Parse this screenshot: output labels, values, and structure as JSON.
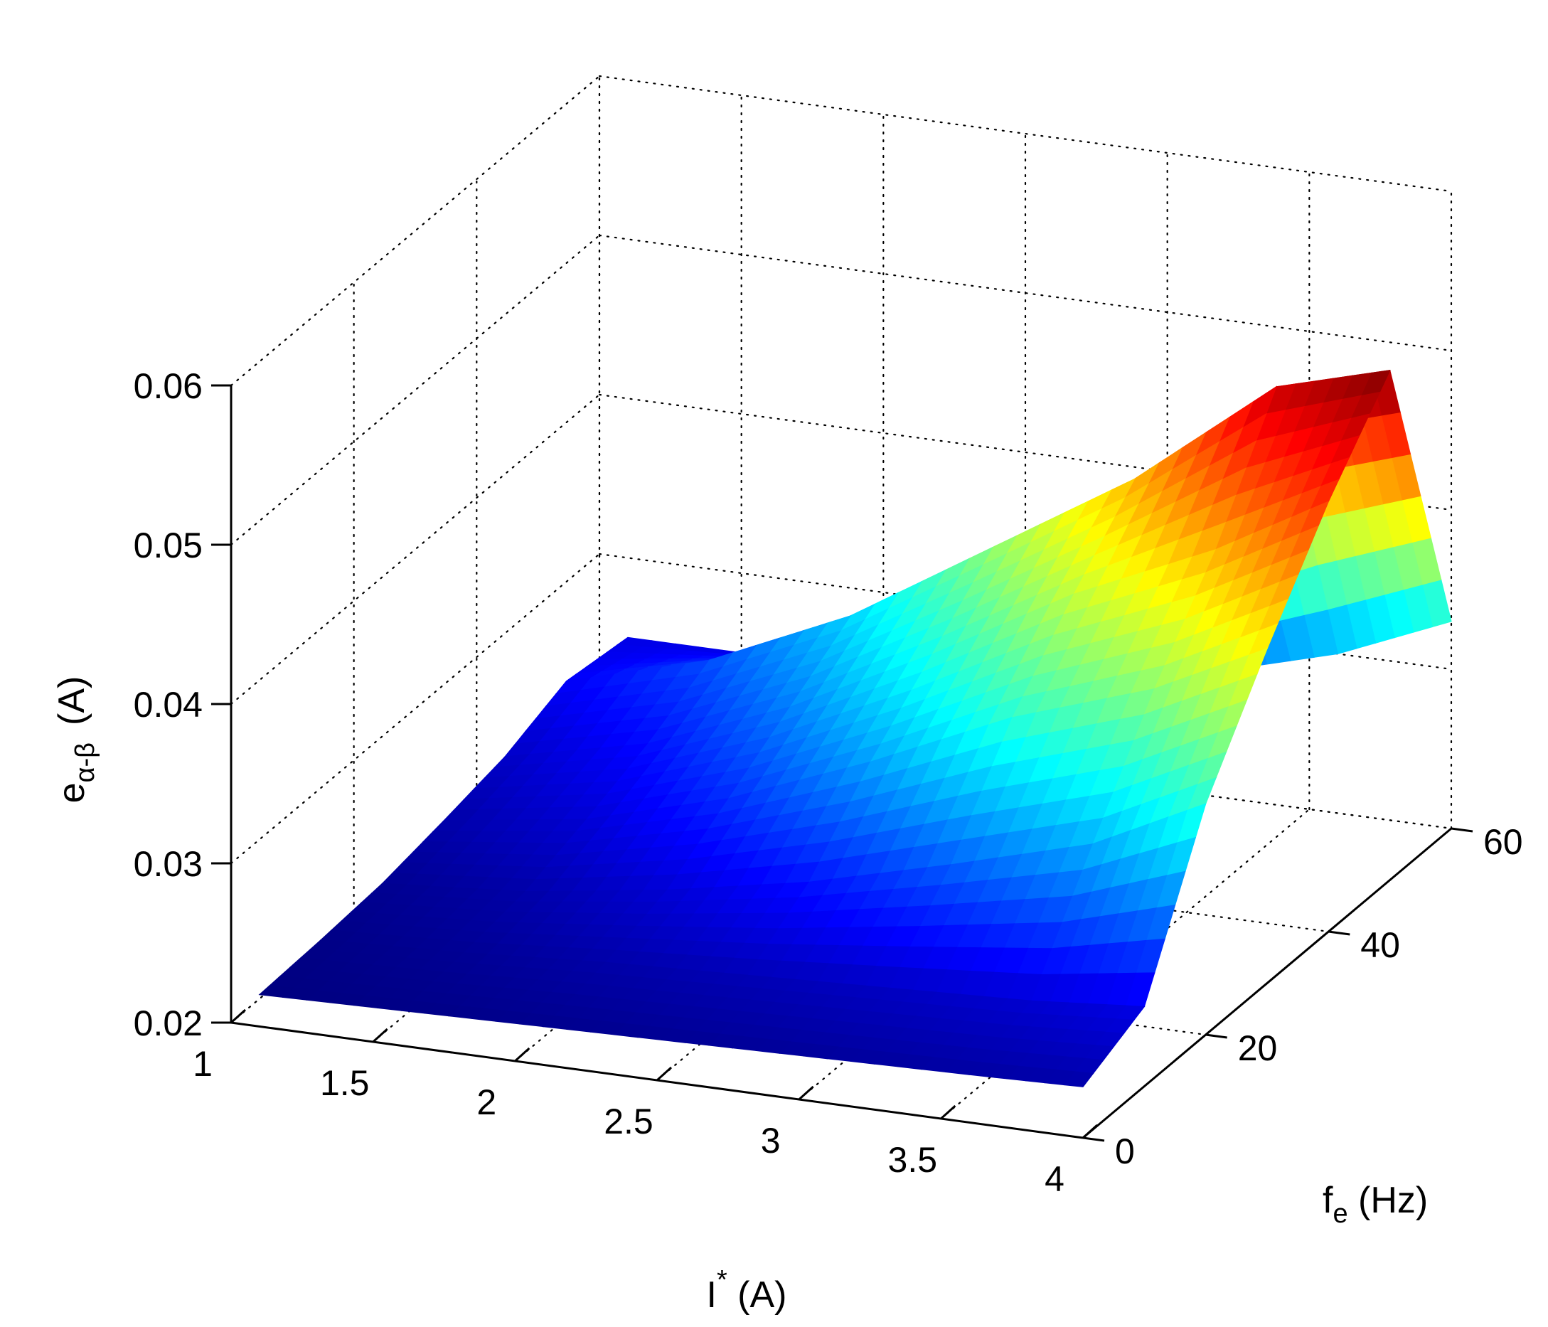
{
  "chart_data": {
    "type": "surface",
    "title": "",
    "xlabel": {
      "base": "I",
      "sup": "*",
      "rest": " (A)"
    },
    "ylabel": {
      "base": "f",
      "sub": "e",
      "rest": " (Hz)"
    },
    "zlabel": {
      "base": "e",
      "sub": "α-β",
      "rest": "(A)"
    },
    "xlim": [
      1,
      4
    ],
    "ylim": [
      0,
      60
    ],
    "zlim": [
      0.02,
      0.06
    ],
    "x_ticks": [
      "1",
      "1.5",
      "2",
      "2.5",
      "3",
      "3.5",
      "4"
    ],
    "y_ticks": [
      "0",
      "20",
      "40",
      "60"
    ],
    "z_ticks": [
      "0.02",
      "0.03",
      "0.04",
      "0.05",
      "0.06"
    ],
    "grid": true,
    "colormap": "jet",
    "colors": {
      "jet_low": "#00008f",
      "jet_high": "#800000",
      "grid": "#000000"
    },
    "x": [
      1.1,
      1.6,
      2.1,
      2.6,
      3.1,
      3.6,
      4.0
    ],
    "y": [
      0,
      10,
      20,
      30,
      40,
      50,
      60
    ],
    "z": [
      [
        0.022,
        0.0222,
        0.0224,
        0.0226,
        0.0228,
        0.023,
        0.0232
      ],
      [
        0.0222,
        0.0226,
        0.0232,
        0.0236,
        0.024,
        0.0244,
        0.025
      ],
      [
        0.0225,
        0.0232,
        0.0245,
        0.0262,
        0.0285,
        0.031,
        0.0345
      ],
      [
        0.0232,
        0.0245,
        0.027,
        0.0305,
        0.0345,
        0.0375,
        0.041
      ],
      [
        0.024,
        0.026,
        0.0295,
        0.034,
        0.039,
        0.043,
        0.047
      ],
      [
        0.0255,
        0.028,
        0.032,
        0.0375,
        0.043,
        0.05,
        0.052
      ],
      [
        0.025,
        0.025,
        0.0245,
        0.025,
        0.0275,
        0.03,
        0.033
      ]
    ]
  }
}
